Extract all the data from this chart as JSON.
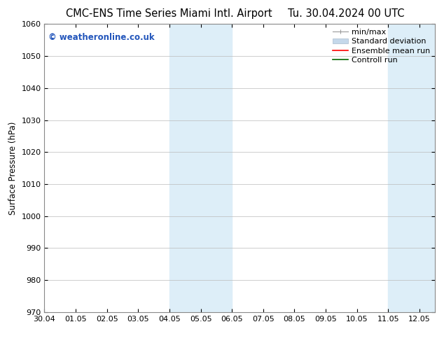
{
  "title_left": "CMC-ENS Time Series Miami Intl. Airport",
  "title_right": "Tu. 30.04.2024 00 UTC",
  "ylabel": "Surface Pressure (hPa)",
  "ylim": [
    970,
    1060
  ],
  "yticks": [
    970,
    980,
    990,
    1000,
    1010,
    1020,
    1030,
    1040,
    1050,
    1060
  ],
  "xlim_start": 0.0,
  "xlim_end": 12.5,
  "xtick_labels": [
    "30.04",
    "01.05",
    "02.05",
    "03.05",
    "04.05",
    "05.05",
    "06.05",
    "07.05",
    "08.05",
    "09.05",
    "10.05",
    "11.05",
    "12.05"
  ],
  "xtick_positions": [
    0,
    1,
    2,
    3,
    4,
    5,
    6,
    7,
    8,
    9,
    10,
    11,
    12
  ],
  "shade_bands": [
    {
      "x_start": 4.0,
      "x_end": 6.0,
      "color": "#ddeef8"
    },
    {
      "x_start": 11.0,
      "x_end": 12.5,
      "color": "#ddeef8"
    }
  ],
  "watermark_text": "© weatheronline.co.uk",
  "watermark_color": "#2255bb",
  "legend_items": [
    {
      "label": "min/max",
      "color": "#aaaaaa",
      "type": "errorbar"
    },
    {
      "label": "Standard deviation",
      "color": "#c5d8ea",
      "type": "fill"
    },
    {
      "label": "Ensemble mean run",
      "color": "red",
      "type": "line"
    },
    {
      "label": "Controll run",
      "color": "green",
      "type": "line"
    }
  ],
  "bg_color": "#ffffff",
  "grid_color": "#bbbbbb",
  "title_fontsize": 10.5,
  "axis_fontsize": 8.5,
  "tick_fontsize": 8.0,
  "legend_fontsize": 8.0,
  "watermark_fontsize": 8.5
}
